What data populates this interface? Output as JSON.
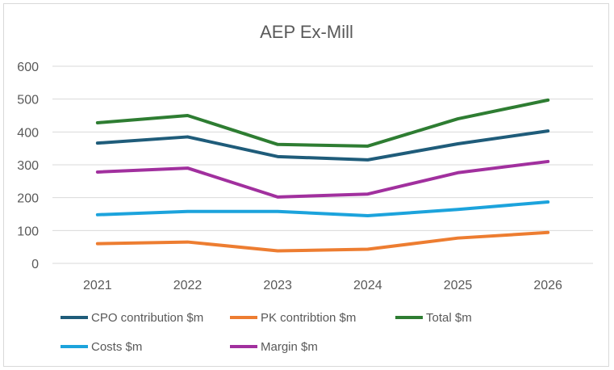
{
  "chart_data": {
    "type": "line",
    "title": "AEP Ex-Mill",
    "xlabel": "",
    "ylabel": "",
    "categories": [
      "2021",
      "2022",
      "2023",
      "2024",
      "2025",
      "2026"
    ],
    "ylim": [
      0,
      600
    ],
    "yticks": [
      0,
      100,
      200,
      300,
      400,
      500,
      600
    ],
    "grid": true,
    "legend_position": "bottom",
    "series": [
      {
        "name": "CPO contribution $m",
        "color": "#1f5c7a",
        "values": [
          366,
          385,
          325,
          315,
          364,
          403
        ]
      },
      {
        "name": "PK contribtion $m",
        "color": "#ed7d31",
        "values": [
          60,
          65,
          38,
          43,
          77,
          94
        ]
      },
      {
        "name": "Total $m",
        "color": "#2e7d32",
        "values": [
          428,
          450,
          362,
          357,
          440,
          497
        ]
      },
      {
        "name": "Costs $m",
        "color": "#1ca3dc",
        "values": [
          148,
          158,
          158,
          145,
          164,
          187
        ]
      },
      {
        "name": "Margin $m",
        "color": "#a1309e",
        "values": [
          278,
          290,
          202,
          211,
          276,
          310
        ]
      }
    ]
  }
}
